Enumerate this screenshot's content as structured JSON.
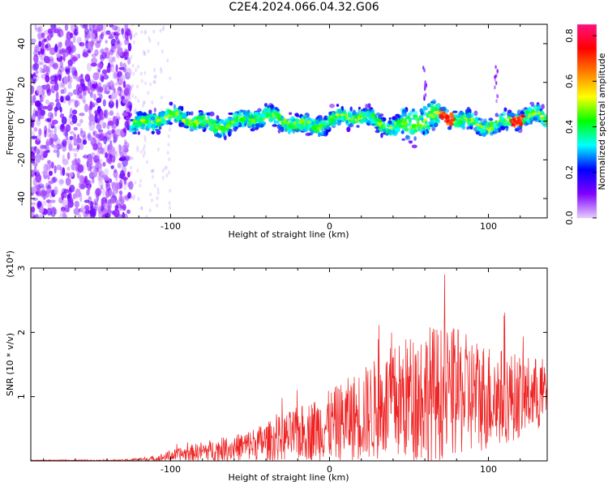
{
  "title": "C2E4.2024.066.04.32.G06",
  "chart_data": [
    {
      "type": "heatmap",
      "name": "spectrogram",
      "xlabel": "Height of straight line (km)",
      "ylabel": "Frequency (Hz)",
      "xlim": [
        -188,
        137
      ],
      "ylim": [
        -50,
        50
      ],
      "xticks": [
        -100,
        0,
        100
      ],
      "yticks": [
        -40,
        -20,
        0,
        20,
        40
      ],
      "colorbar": {
        "label": "Normalized spectral amplitude",
        "ticks": [
          "0.0",
          "0.2",
          "0.4",
          "0.6",
          "0.8"
        ],
        "range": [
          0,
          0.85
        ],
        "colormap": [
          "#e6ccff",
          "#8000ff",
          "#0000ff",
          "#00ffff",
          "#00ff00",
          "#ffff00",
          "#ff8000",
          "#ff0000",
          "#ff1080"
        ]
      },
      "features": {
        "noise_region_end_km": -125,
        "band_center_hz": 0,
        "band_half_width_hz": 7,
        "spike_near_km": [
          60,
          105
        ],
        "hotspots_km": [
          74,
          118
        ]
      }
    },
    {
      "type": "line",
      "name": "snr",
      "xlabel": "Height of straight line (km)",
      "ylabel": "SNR (10 * v/v)",
      "scale_label": "(x10⁴)",
      "xlim": [
        -188,
        137
      ],
      "ylim": [
        0,
        3
      ],
      "xticks": [
        -100,
        0,
        100
      ],
      "yticks": [
        1,
        2,
        3
      ],
      "color": "#ee2222",
      "envelope": {
        "x": [
          -188,
          -130,
          -110,
          -95,
          -80,
          -60,
          -40,
          -20,
          0,
          20,
          40,
          60,
          80,
          100,
          120,
          137
        ],
        "mean": [
          0.01,
          0.01,
          0.03,
          0.1,
          0.15,
          0.2,
          0.3,
          0.42,
          0.55,
          0.72,
          0.9,
          1.05,
          1.05,
          1.0,
          1.0,
          1.05
        ],
        "amplitude": [
          0.005,
          0.01,
          0.05,
          0.1,
          0.15,
          0.2,
          0.3,
          0.42,
          0.55,
          0.72,
          0.9,
          1.1,
          1.0,
          0.85,
          0.65,
          0.55
        ]
      }
    }
  ]
}
